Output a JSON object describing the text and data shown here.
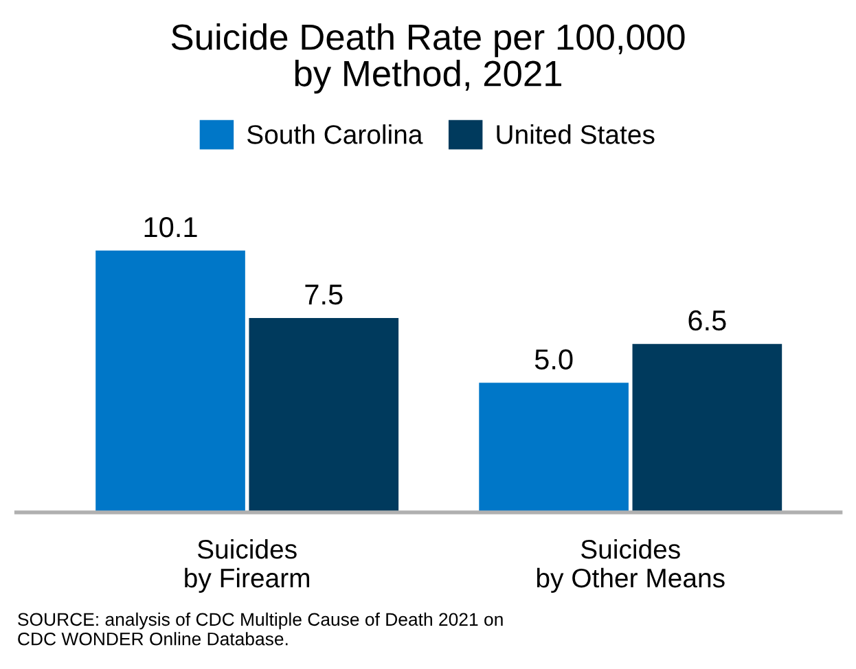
{
  "chart_data": {
    "type": "bar",
    "title": "Suicide Death Rate per 100,000\nby Method, 2021",
    "categories": [
      "Suicides\nby Firearm",
      "Suicides\nby Other Means"
    ],
    "series": [
      {
        "name": "South Carolina",
        "color": "#0077c8",
        "values": [
          10.1,
          5.0
        ],
        "value_labels": [
          "10.1",
          "5.0"
        ]
      },
      {
        "name": "United States",
        "color": "#003a5d",
        "values": [
          7.5,
          6.5
        ],
        "value_labels": [
          "7.5",
          "6.5"
        ]
      }
    ],
    "legend": "top",
    "grid": false,
    "annotations": [
      "SOURCE: analysis of CDC Multiple Cause of Death 2021 on\nCDC WONDER Online Database."
    ]
  }
}
